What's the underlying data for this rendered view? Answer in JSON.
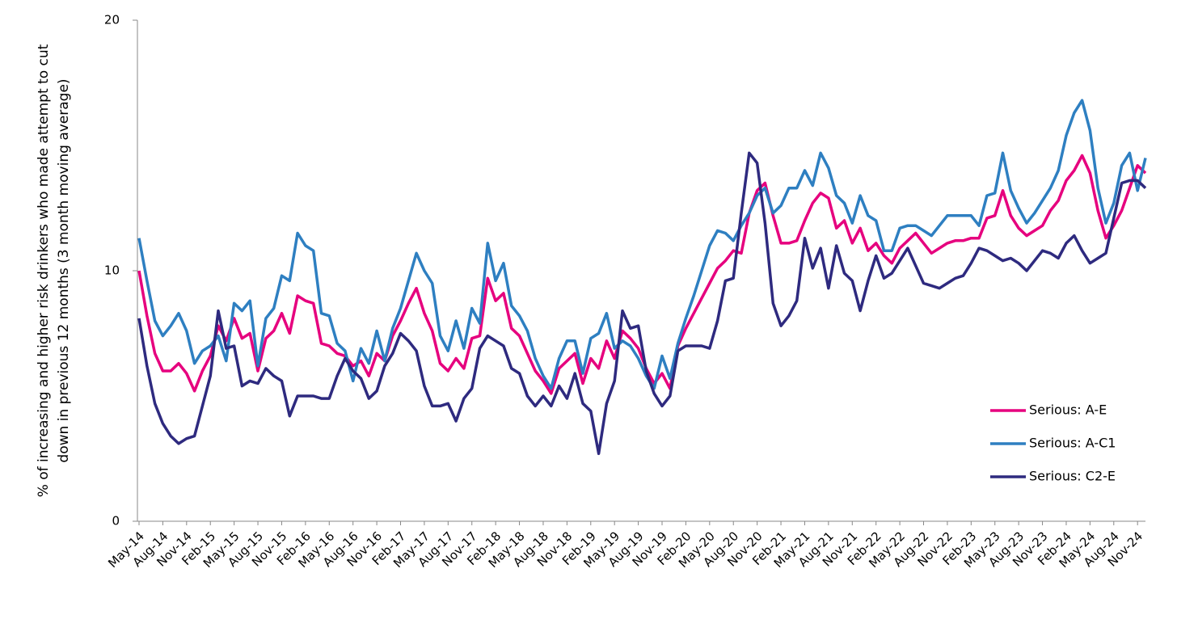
{
  "chart_data": {
    "type": "line",
    "y_label": "% of increasing and higher risk drinkers who made attempt to cut down in previous 12 months (3 month moving average)",
    "categories": [
      "May-14",
      null,
      null,
      "Aug-14",
      null,
      null,
      "Nov-14",
      null,
      null,
      "Feb-15",
      null,
      null,
      "May-15",
      null,
      null,
      "Aug-15",
      null,
      null,
      "Nov-15",
      null,
      null,
      "Feb-16",
      null,
      null,
      "May-16",
      null,
      null,
      "Aug-16",
      null,
      null,
      "Nov-16",
      null,
      null,
      "Feb-17",
      null,
      null,
      "May-17",
      null,
      null,
      "Aug-17",
      null,
      null,
      "Nov-17",
      null,
      null,
      "Feb-18",
      null,
      null,
      "May-18",
      null,
      null,
      "Aug-18",
      null,
      null,
      "Nov-18",
      null,
      null,
      "Feb-19",
      null,
      null,
      "May-19",
      null,
      null,
      "Aug-19",
      null,
      null,
      "Nov-19",
      null,
      null,
      "Feb-20",
      null,
      null,
      "May-20",
      null,
      null,
      "Aug-20",
      null,
      null,
      "Nov-20",
      null,
      null,
      "Feb-21",
      null,
      null,
      "May-21",
      null,
      null,
      "Aug-21",
      null,
      null,
      "Nov-21",
      null,
      null,
      "Feb-22",
      null,
      null,
      "May-22",
      null,
      null,
      "Aug-22",
      null,
      null,
      "Nov-22",
      null,
      null,
      "Feb-23",
      null,
      null,
      "May-23",
      null,
      null,
      "Aug-23",
      null,
      null,
      "Nov-23",
      null,
      null,
      "Feb-24",
      null,
      null,
      "May-24",
      null,
      null,
      "Aug-24",
      null,
      null,
      "Nov-24",
      null
    ],
    "series": [
      {
        "name": "Serious: A-E",
        "color": "#e6007e",
        "values": [
          10.0,
          8.2,
          6.7,
          6.0,
          6.0,
          6.3,
          5.9,
          5.2,
          6.0,
          6.6,
          7.8,
          7.2,
          8.1,
          7.3,
          7.5,
          6.0,
          7.3,
          7.6,
          8.3,
          7.5,
          9.0,
          8.8,
          8.7,
          7.1,
          7.0,
          6.7,
          6.6,
          6.2,
          6.4,
          5.8,
          6.7,
          6.4,
          7.4,
          8.0,
          8.7,
          9.3,
          8.3,
          7.6,
          6.3,
          6.0,
          6.5,
          6.1,
          7.3,
          7.4,
          9.7,
          8.8,
          9.1,
          7.7,
          7.4,
          6.7,
          6.0,
          5.6,
          5.1,
          6.1,
          6.4,
          6.7,
          5.5,
          6.5,
          6.1,
          7.2,
          6.5,
          7.6,
          7.3,
          6.9,
          6.1,
          5.5,
          5.9,
          5.3,
          7.0,
          7.7,
          8.3,
          8.9,
          9.5,
          10.1,
          10.4,
          10.8,
          10.7,
          12.3,
          13.2,
          13.5,
          12.2,
          11.1,
          11.1,
          11.2,
          12.0,
          12.7,
          13.1,
          12.9,
          11.7,
          12.0,
          11.1,
          11.7,
          10.8,
          11.1,
          10.6,
          10.3,
          10.9,
          11.2,
          11.5,
          11.1,
          10.7,
          10.9,
          11.1,
          11.2,
          11.2,
          11.3,
          11.3,
          12.1,
          12.2,
          13.2,
          12.2,
          11.7,
          11.4,
          11.6,
          11.8,
          12.4,
          12.8,
          13.6,
          14.0,
          14.6,
          13.9,
          12.4,
          11.3,
          11.8,
          12.4,
          13.3,
          14.2,
          13.9
        ]
      },
      {
        "name": "Serious: A-C1",
        "color": "#2e7fc1",
        "values": [
          11.3,
          9.6,
          8.0,
          7.4,
          7.8,
          8.3,
          7.6,
          6.3,
          6.8,
          7.0,
          7.4,
          6.4,
          8.7,
          8.4,
          8.8,
          6.2,
          8.1,
          8.5,
          9.8,
          9.6,
          11.5,
          11.0,
          10.8,
          8.3,
          8.2,
          7.1,
          6.8,
          5.6,
          6.9,
          6.3,
          7.6,
          6.4,
          7.7,
          8.5,
          9.6,
          10.7,
          10.0,
          9.5,
          7.4,
          6.8,
          8.0,
          6.9,
          8.5,
          7.9,
          11.1,
          9.6,
          10.3,
          8.6,
          8.2,
          7.6,
          6.5,
          5.8,
          5.3,
          6.5,
          7.2,
          7.2,
          5.9,
          7.3,
          7.5,
          8.3,
          6.9,
          7.2,
          7.0,
          6.5,
          5.8,
          5.3,
          6.6,
          5.7,
          7.1,
          8.1,
          9.0,
          10.0,
          11.0,
          11.6,
          11.5,
          11.2,
          11.8,
          12.3,
          13.0,
          13.3,
          12.3,
          12.6,
          13.3,
          13.3,
          14.0,
          13.4,
          14.7,
          14.1,
          13.0,
          12.7,
          11.9,
          13.0,
          12.2,
          12.0,
          10.8,
          10.8,
          11.7,
          11.8,
          11.8,
          11.6,
          11.4,
          11.8,
          12.2,
          12.2,
          12.2,
          12.2,
          11.8,
          13.0,
          13.1,
          14.7,
          13.2,
          12.5,
          11.9,
          12.3,
          12.8,
          13.3,
          14.0,
          15.4,
          16.3,
          16.8,
          15.6,
          13.3,
          11.9,
          12.7,
          14.2,
          14.7,
          13.2,
          14.5
        ]
      },
      {
        "name": "Serious: C2-E",
        "color": "#2e2a7f",
        "values": [
          8.1,
          6.2,
          4.7,
          3.9,
          3.4,
          3.1,
          3.3,
          3.4,
          4.6,
          5.8,
          8.4,
          6.9,
          7.0,
          5.4,
          5.6,
          5.5,
          6.1,
          5.8,
          5.6,
          4.2,
          5.0,
          5.0,
          5.0,
          4.9,
          4.9,
          5.8,
          6.5,
          6.0,
          5.7,
          4.9,
          5.2,
          6.2,
          6.7,
          7.5,
          7.2,
          6.8,
          5.4,
          4.6,
          4.6,
          4.7,
          4.0,
          4.9,
          5.3,
          6.9,
          7.4,
          7.2,
          7.0,
          6.1,
          5.9,
          5.0,
          4.6,
          5.0,
          4.6,
          5.4,
          4.9,
          5.9,
          4.7,
          4.4,
          2.7,
          4.7,
          5.6,
          8.4,
          7.7,
          7.8,
          6.0,
          5.1,
          4.6,
          5.0,
          6.8,
          7.0,
          7.0,
          7.0,
          6.9,
          8.0,
          9.6,
          9.7,
          12.3,
          14.7,
          14.3,
          11.9,
          8.7,
          7.8,
          8.2,
          8.8,
          11.3,
          10.1,
          10.9,
          9.3,
          11.0,
          9.9,
          9.6,
          8.4,
          9.6,
          10.6,
          9.7,
          9.9,
          10.4,
          10.9,
          10.2,
          9.5,
          9.4,
          9.3,
          9.5,
          9.7,
          9.8,
          10.3,
          10.9,
          10.8,
          10.6,
          10.4,
          10.5,
          10.3,
          10.0,
          10.4,
          10.8,
          10.7,
          10.5,
          11.1,
          11.4,
          10.8,
          10.3,
          10.5,
          10.7,
          12.1,
          13.5,
          13.6,
          13.6,
          13.3
        ]
      }
    ],
    "ylim": [
      0,
      20
    ],
    "yticks": [
      0,
      10,
      20
    ],
    "grid": false,
    "legend": "lower right"
  }
}
